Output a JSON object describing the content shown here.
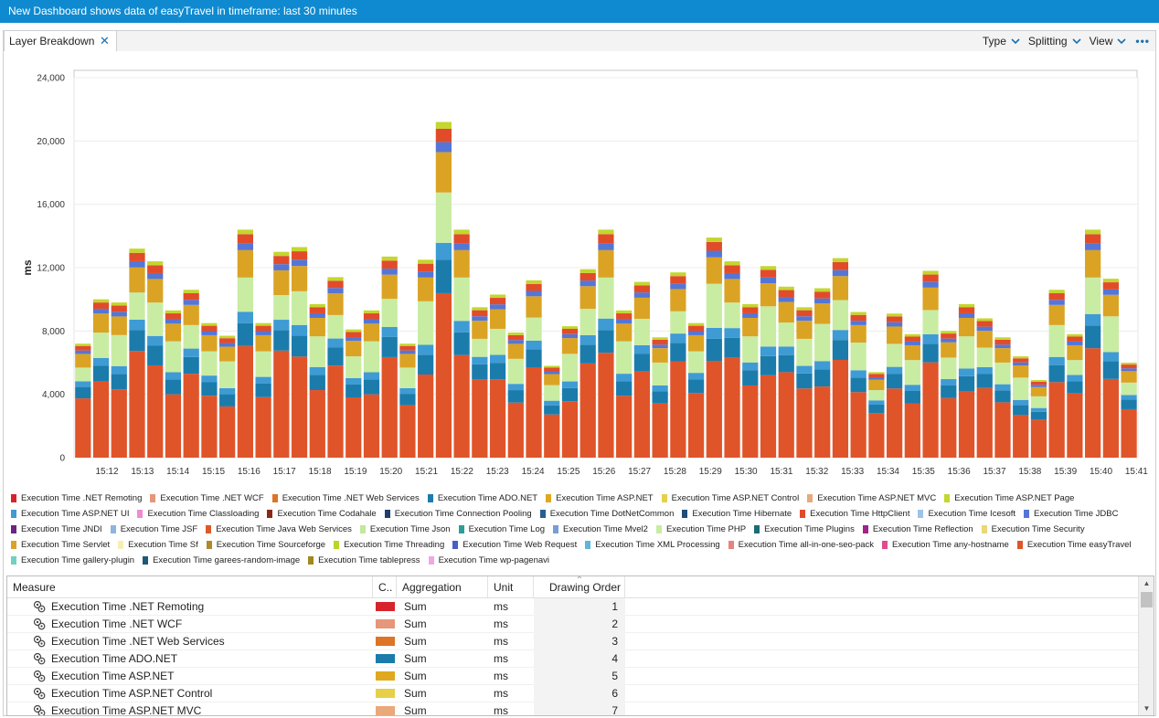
{
  "window": {
    "title": "New Dashboard shows data of easyTravel in timeframe: last 30 minutes"
  },
  "tab": {
    "label": "Layer Breakdown",
    "close": "✕"
  },
  "toolbar": {
    "menus": [
      "Type",
      "Splitting",
      "View"
    ],
    "more": "•••"
  },
  "chart_data": {
    "type": "bar",
    "stacked": true,
    "ylabel": "ms",
    "ylim": [
      0,
      24000
    ],
    "yticks": [
      "0",
      "4,000",
      "8,000",
      "12,000",
      "16,000",
      "20,000",
      "24,000"
    ],
    "ytick_values": [
      0,
      4000,
      8000,
      12000,
      16000,
      20000,
      24000
    ],
    "xticks": [
      "15:12",
      "15:13",
      "15:14",
      "15:15",
      "15:16",
      "15:17",
      "15:18",
      "15:19",
      "15:20",
      "15:21",
      "15:22",
      "15:23",
      "15:24",
      "15:25",
      "15:26",
      "15:27",
      "15:28",
      "15:29",
      "15:30",
      "15:31",
      "15:32",
      "15:33",
      "15:34",
      "15:35",
      "15:36",
      "15:37",
      "15:38",
      "15:39",
      "15:40",
      "15:41"
    ],
    "totals": [
      7200,
      10000,
      9800,
      13200,
      12400,
      9300,
      10600,
      8500,
      7700,
      14400,
      8500,
      13000,
      13300,
      9700,
      11400,
      8100,
      9300,
      12700,
      7200,
      12500,
      21200,
      14400,
      9500,
      10300,
      7900,
      11200,
      5800,
      8300,
      11900,
      14400,
      9300,
      11100,
      7600,
      11700,
      8500,
      13900,
      12400,
      9700,
      12100,
      10800,
      9500,
      10700,
      12600,
      9200,
      5400,
      9100,
      7800,
      11800,
      8000,
      9700,
      8800,
      7600,
      6400,
      4900,
      10600,
      7800,
      14400,
      11300,
      6000
    ],
    "series_order": [
      "Execution Time easyTravel",
      "Execution Time ADO.NET",
      "Execution Time ASP.NET UI",
      "Execution Time PHP",
      "Execution Time Servlet",
      "Execution Time JDBC",
      "Execution Time HttpClient",
      "Execution Time ASP.NET Page"
    ],
    "series_share": [
      0.52,
      0.1,
      0.05,
      0.12,
      0.12,
      0.03,
      0.04,
      0.02
    ]
  },
  "legend": {
    "rows": [
      [
        {
          "label": "Execution Time .NET Remoting",
          "color": "#d7242c"
        },
        {
          "label": "Execution Time .NET WCF",
          "color": "#e6967a"
        },
        {
          "label": "Execution Time .NET Web Services",
          "color": "#de7426"
        },
        {
          "label": "Execution Time ADO.NET",
          "color": "#1b7cab"
        },
        {
          "label": "Execution Time ASP.NET",
          "color": "#dfa81f"
        },
        {
          "label": "Execution Time ASP.NET Control",
          "color": "#e6d04a"
        },
        {
          "label": "Execution Time ASP.NET MVC",
          "color": "#e9a97a"
        },
        {
          "label": "Execution Time ASP.NET Page",
          "color": "#c4d62f"
        }
      ],
      [
        {
          "label": "Execution Time ASP.NET UI",
          "color": "#3e9bd4"
        },
        {
          "label": "Execution Time Classloading",
          "color": "#f08ad4"
        },
        {
          "label": "Execution Time Codahale",
          "color": "#8a2a16"
        },
        {
          "label": "Execution Time Connection Pooling",
          "color": "#1e3f6e"
        },
        {
          "label": "Execution Time DotNetCommon",
          "color": "#2a5d8f"
        },
        {
          "label": "Execution Time Hibernate",
          "color": "#1f4d7a"
        },
        {
          "label": "Execution Time HttpClient",
          "color": "#e24b2a"
        },
        {
          "label": "Execution Time Icesoft",
          "color": "#9fc2e8"
        },
        {
          "label": "Execution Time JDBC",
          "color": "#5476d6"
        }
      ],
      [
        {
          "label": "Execution Time JNDI",
          "color": "#6b2683"
        },
        {
          "label": "Execution Time JSF",
          "color": "#8fb4e0"
        },
        {
          "label": "Execution Time Java Web Services",
          "color": "#dc5a2a"
        },
        {
          "label": "Execution Time Json",
          "color": "#c4e89b"
        },
        {
          "label": "Execution Time Log",
          "color": "#2a9e98"
        },
        {
          "label": "Execution Time Mvel2",
          "color": "#7a9ed4"
        },
        {
          "label": "Execution Time PHP",
          "color": "#c9eca3"
        },
        {
          "label": "Execution Time Plugins",
          "color": "#1d6a78"
        },
        {
          "label": "Execution Time Reflection",
          "color": "#a0228a"
        },
        {
          "label": "Execution Time Security",
          "color": "#ebd77a"
        }
      ],
      [
        {
          "label": "Execution Time Servlet",
          "color": "#dba324"
        },
        {
          "label": "Execution Time Sf",
          "color": "#f6efb5"
        },
        {
          "label": "Execution Time Sourceforge",
          "color": "#b0892a"
        },
        {
          "label": "Execution Time Threading",
          "color": "#b8d62a"
        },
        {
          "label": "Execution Time Web Request",
          "color": "#4a5fc4"
        },
        {
          "label": "Execution Time XML Processing",
          "color": "#5eb7d9"
        },
        {
          "label": "Execution Time all-in-one-seo-pack",
          "color": "#e6837e"
        },
        {
          "label": "Execution Time any-hostname",
          "color": "#e04c8e"
        },
        {
          "label": "Execution Time easyTravel",
          "color": "#e0542a"
        }
      ],
      [
        {
          "label": "Execution Time gallery-plugin",
          "color": "#6fd1c0"
        },
        {
          "label": "Execution Time garees-random-image",
          "color": "#1e5878"
        },
        {
          "label": "Execution Time tablepress",
          "color": "#a0891e"
        },
        {
          "label": "Execution Time wp-pagenavi",
          "color": "#f1a6e6"
        }
      ]
    ]
  },
  "table": {
    "columns": [
      "Measure",
      "C..",
      "Aggregation",
      "Unit",
      "Drawing Order"
    ],
    "sort_indicator": "^",
    "rows": [
      {
        "measure": "Execution Time .NET Remoting",
        "color": "#d7242c",
        "aggregation": "Sum",
        "unit": "ms",
        "order": "1"
      },
      {
        "measure": "Execution Time .NET WCF",
        "color": "#e6967a",
        "aggregation": "Sum",
        "unit": "ms",
        "order": "2"
      },
      {
        "measure": "Execution Time .NET Web Services",
        "color": "#de7426",
        "aggregation": "Sum",
        "unit": "ms",
        "order": "3"
      },
      {
        "measure": "Execution Time ADO.NET",
        "color": "#1b7cab",
        "aggregation": "Sum",
        "unit": "ms",
        "order": "4"
      },
      {
        "measure": "Execution Time ASP.NET",
        "color": "#dfa81f",
        "aggregation": "Sum",
        "unit": "ms",
        "order": "5"
      },
      {
        "measure": "Execution Time ASP.NET Control",
        "color": "#e6d04a",
        "aggregation": "Sum",
        "unit": "ms",
        "order": "6"
      },
      {
        "measure": "Execution Time ASP.NET MVC",
        "color": "#e9a97a",
        "aggregation": "Sum",
        "unit": "ms",
        "order": "7"
      }
    ]
  }
}
